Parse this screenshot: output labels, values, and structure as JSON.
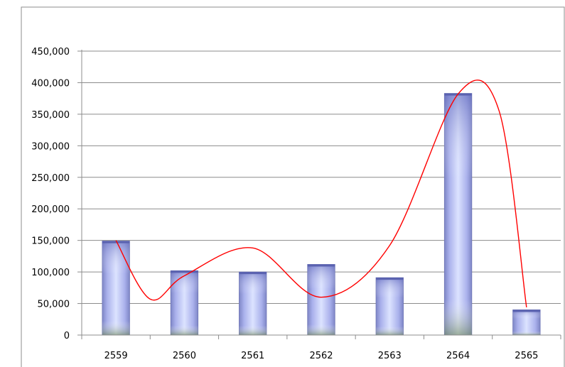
{
  "chart_data": {
    "type": "bar",
    "categories": [
      "2559",
      "2560",
      "2561",
      "2562",
      "2563",
      "2564",
      "2565"
    ],
    "series": [
      {
        "values": [
          149000,
          102000,
          100000,
          112000,
          91000,
          383000,
          40000
        ],
        "color": "#8f96d8"
      }
    ],
    "trendline": {
      "type": "smoothed",
      "color": "#ff0000",
      "points": [
        [
          0.0,
          150000
        ],
        [
          0.5,
          57000
        ],
        [
          1.0,
          94000
        ],
        [
          2.0,
          138000
        ],
        [
          3.0,
          60000
        ],
        [
          4.0,
          142000
        ],
        [
          5.0,
          382000
        ],
        [
          5.6,
          355000
        ],
        [
          6.0,
          44000
        ]
      ]
    },
    "yticks": [
      "0",
      "50,000",
      "100,000",
      "150,000",
      "200,000",
      "250,000",
      "300,000",
      "350,000",
      "400,000",
      "450,000"
    ],
    "ylim": [
      0,
      450000
    ],
    "grid": true,
    "legend": "none"
  }
}
